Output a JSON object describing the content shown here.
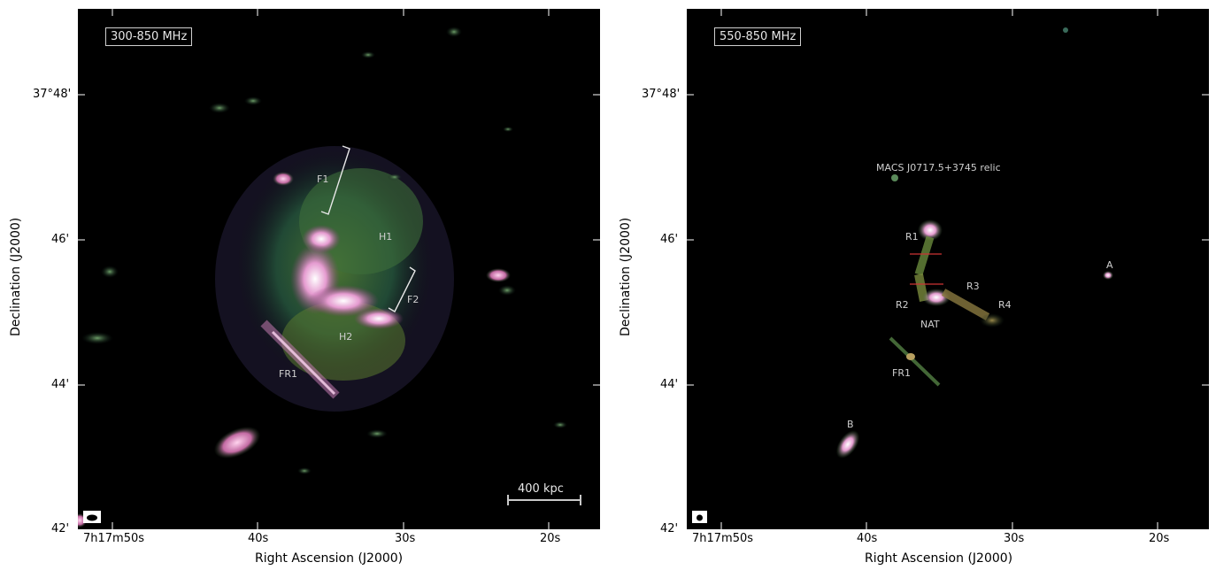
{
  "figure": {
    "left_panel": {
      "band_label": "300-850 MHz",
      "annotations": [
        "F1",
        "H1",
        "F2",
        "H2",
        "FR1"
      ],
      "scale_bar": "400 kpc"
    },
    "right_panel": {
      "band_label": "550-850 MHz",
      "annotations": [
        "MACS J0717.5+3745 relic",
        "R1",
        "R3",
        "R2",
        "R4",
        "NAT",
        "FR1",
        "A",
        "B"
      ]
    },
    "x_axis": {
      "label": "Right Ascension (J2000)",
      "ticks": [
        "7h17m50s",
        "40s",
        "30s",
        "20s"
      ]
    },
    "y_axis": {
      "label": "Declination (J2000)",
      "ticks": [
        "37°48'",
        "46'",
        "44'",
        "42'"
      ]
    },
    "colors": {
      "background": "#000000",
      "emission_low": "#1e5a3a",
      "emission_mid": "#4f8a3c",
      "emission_high": "#d77fb8",
      "emission_peak": "#ffffff"
    }
  }
}
